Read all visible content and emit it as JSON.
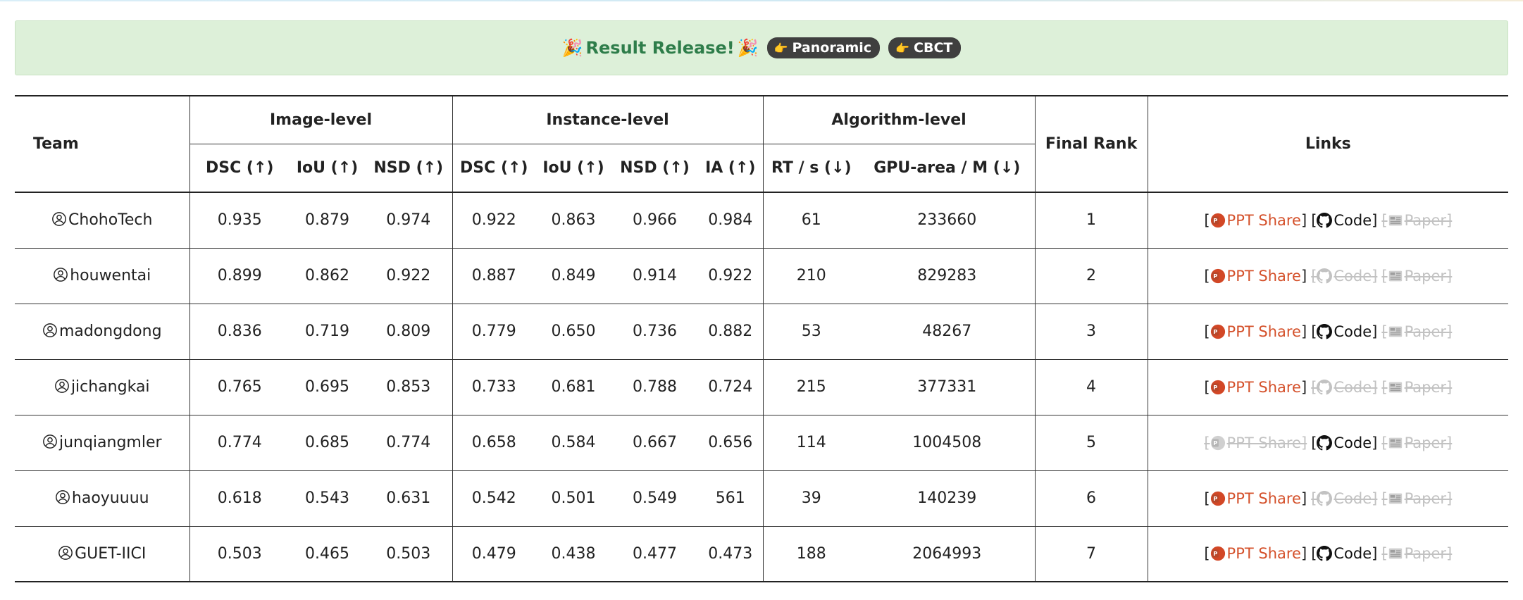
{
  "banner": {
    "title": "Result Release!",
    "party_icon": "party-popper-icon",
    "pills": [
      {
        "label": "Panoramic",
        "icon": "pointing-hand-icon"
      },
      {
        "label": "CBCT",
        "icon": "pointing-hand-icon"
      }
    ],
    "colors": {
      "background": "#ddf0d9",
      "title": "#2e7d4a",
      "pill": "#3f3f3f"
    }
  },
  "table": {
    "headers": {
      "team": "Team",
      "image_level": "Image-level",
      "instance_level": "Instance-level",
      "algorithm_level": "Algorithm-level",
      "final_rank": "Final Rank",
      "links": "Links",
      "image": {
        "dsc": "DSC (↑)",
        "iou": "IoU (↑)",
        "nsd": "NSD (↑)"
      },
      "instance": {
        "dsc": "DSC (↑)",
        "iou": "IoU (↑)",
        "nsd": "NSD (↑)",
        "ia": "IA (↑)"
      },
      "algorithm": {
        "rt": "RT / s (↓)",
        "gpu": "GPU-area / M (↓)"
      }
    },
    "link_labels": {
      "ppt": "PPT Share",
      "code": "Code",
      "paper": "Paper"
    },
    "link_colors": {
      "ppt": "#d4502a",
      "code": "#111111",
      "disabled": "#c2c2c2"
    },
    "rows": [
      {
        "team": "ChohoTech",
        "img_dsc": "0.935",
        "img_iou": "0.879",
        "img_nsd": "0.974",
        "ins_dsc": "0.922",
        "ins_iou": "0.863",
        "ins_nsd": "0.966",
        "ins_ia": "0.984",
        "rt": "61",
        "gpu": "233660",
        "rank": "1",
        "ppt": true,
        "code": true,
        "paper": false
      },
      {
        "team": "houwentai",
        "img_dsc": "0.899",
        "img_iou": "0.862",
        "img_nsd": "0.922",
        "ins_dsc": "0.887",
        "ins_iou": "0.849",
        "ins_nsd": "0.914",
        "ins_ia": "0.922",
        "rt": "210",
        "gpu": "829283",
        "rank": "2",
        "ppt": true,
        "code": false,
        "paper": false
      },
      {
        "team": "madongdong",
        "img_dsc": "0.836",
        "img_iou": "0.719",
        "img_nsd": "0.809",
        "ins_dsc": "0.779",
        "ins_iou": "0.650",
        "ins_nsd": "0.736",
        "ins_ia": "0.882",
        "rt": "53",
        "gpu": "48267",
        "rank": "3",
        "ppt": true,
        "code": true,
        "paper": false
      },
      {
        "team": "jichangkai",
        "img_dsc": "0.765",
        "img_iou": "0.695",
        "img_nsd": "0.853",
        "ins_dsc": "0.733",
        "ins_iou": "0.681",
        "ins_nsd": "0.788",
        "ins_ia": "0.724",
        "rt": "215",
        "gpu": "377331",
        "rank": "4",
        "ppt": true,
        "code": false,
        "paper": false
      },
      {
        "team": "junqiangmler",
        "img_dsc": "0.774",
        "img_iou": "0.685",
        "img_nsd": "0.774",
        "ins_dsc": "0.658",
        "ins_iou": "0.584",
        "ins_nsd": "0.667",
        "ins_ia": "0.656",
        "rt": "114",
        "gpu": "1004508",
        "rank": "5",
        "ppt": false,
        "code": true,
        "paper": false
      },
      {
        "team": "haoyuuuu",
        "img_dsc": "0.618",
        "img_iou": "0.543",
        "img_nsd": "0.631",
        "ins_dsc": "0.542",
        "ins_iou": "0.501",
        "ins_nsd": "0.549",
        "ins_ia": "561",
        "rt": "39",
        "gpu": "140239",
        "rank": "6",
        "ppt": true,
        "code": false,
        "paper": false
      },
      {
        "team": "GUET-IICI",
        "img_dsc": "0.503",
        "img_iou": "0.465",
        "img_nsd": "0.503",
        "ins_dsc": "0.479",
        "ins_iou": "0.438",
        "ins_nsd": "0.477",
        "ins_ia": "0.473",
        "rt": "188",
        "gpu": "2064993",
        "rank": "7",
        "ppt": true,
        "code": true,
        "paper": false
      }
    ]
  }
}
